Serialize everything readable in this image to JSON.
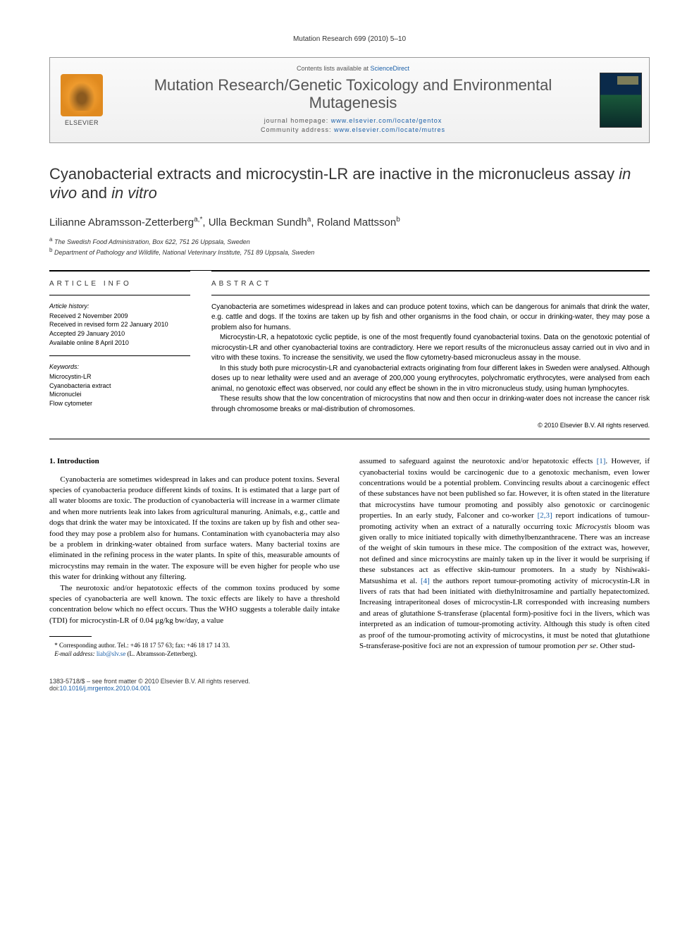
{
  "runningHeader": "Mutation Research 699 (2010) 5–10",
  "masthead": {
    "contents": "Contents lists available at ",
    "contentsLink": "ScienceDirect",
    "journalName": "Mutation Research/Genetic Toxicology and Environmental Mutagenesis",
    "homepageLabel": "journal homepage: ",
    "homepageUrl": "www.elsevier.com/locate/gentox",
    "communityLabel": "Community address: ",
    "communityUrl": "www.elsevier.com/locate/mutres",
    "publisher": "ELSEVIER"
  },
  "title": {
    "pre": "Cyanobacterial extracts and microcystin-LR are inactive in the micronucleus assay ",
    "ital1": "in vivo",
    "mid": " and ",
    "ital2": "in vitro"
  },
  "authors": "Lilianne Abramsson-Zetterberg",
  "authorsSup1": "a,",
  "authorsStar": "*",
  "authorsRest": ", Ulla Beckman Sundh",
  "authorsSup2": "a",
  "authorsRest2": ", Roland Mattsson",
  "authorsSup3": "b",
  "affiliations": {
    "a": "The Swedish Food Administration, Box 622, 751 26 Uppsala, Sweden",
    "b": "Department of Pathology and Wildlife, National Veterinary Institute, 751 89 Uppsala, Sweden"
  },
  "articleInfo": {
    "heading": "ARTICLE INFO",
    "historyHead": "Article history:",
    "received": "Received 2 November 2009",
    "revised": "Received in revised form 22 January 2010",
    "accepted": "Accepted 29 January 2010",
    "online": "Available online 8 April 2010",
    "keywordsHead": "Keywords:",
    "k1": "Microcystin-LR",
    "k2": "Cyanobacteria extract",
    "k3": "Micronuclei",
    "k4": "Flow cytometer"
  },
  "abstract": {
    "heading": "ABSTRACT",
    "p1": "Cyanobacteria are sometimes widespread in lakes and can produce potent toxins, which can be dangerous for animals that drink the water, e.g. cattle and dogs. If the toxins are taken up by fish and other organisms in the food chain, or occur in drinking-water, they may pose a problem also for humans.",
    "p2": "Microcystin-LR, a hepatotoxic cyclic peptide, is one of the most frequently found cyanobacterial toxins. Data on the genotoxic potential of microcystin-LR and other cyanobacterial toxins are contradictory. Here we report results of the micronucleus assay carried out in vivo and in vitro with these toxins. To increase the sensitivity, we used the flow cytometry-based micronucleus assay in the mouse.",
    "p3": "In this study both pure microcystin-LR and cyanobacterial extracts originating from four different lakes in Sweden were analysed. Although doses up to near lethality were used and an average of 200,000 young erythrocytes, polychromatic erythrocytes, were analysed from each animal, no genotoxic effect was observed, nor could any effect be shown in the in vitro micronucleus study, using human lymphocytes.",
    "p4": "These results show that the low concentration of microcystins that now and then occur in drinking-water does not increase the cancer risk through chromosome breaks or mal-distribution of chromosomes.",
    "copyright": "© 2010 Elsevier B.V. All rights reserved."
  },
  "section1": {
    "heading": "1. Introduction",
    "p1": "Cyanobacteria are sometimes widespread in lakes and can produce potent toxins. Several species of cyanobacteria produce different kinds of toxins. It is estimated that a large part of all water blooms are toxic. The production of cyanobacteria will increase in a warmer climate and when more nutrients leak into lakes from agricultural manuring. Animals, e.g., cattle and dogs that drink the water may be intoxicated. If the toxins are taken up by fish and other sea-food they may pose a problem also for humans. Contamination with cyanobacteria may also be a problem in drinking-water obtained from surface waters. Many bacterial toxins are eliminated in the refining process in the water plants. In spite of this, measurable amounts of microcystins may remain in the water. The exposure will be even higher for people who use this water for drinking without any filtering.",
    "p2a": "The neurotoxic and/or hepatotoxic effects of the common toxins produced by some species of cyanobacteria are well known. The toxic effects are likely to have a threshold concentration below which no effect occurs. Thus the WHO suggests a tolerable daily intake (TDI) for microcystin-LR of 0.04 μg/kg bw/day, a value ",
    "p2b": "assumed to safeguard against the neurotoxic and/or hepatotoxic effects ",
    "ref1": "[1]",
    "p2c": ". However, if cyanobacterial toxins would be carcinogenic due to a genotoxic mechanism, even lower concentrations would be a potential problem. Convincing results about a carcinogenic effect of these substances have not been published so far. However, it is often stated in the literature that microcystins have tumour promoting and possibly also genotoxic or carcinogenic properties. In an early study, Falconer and co-worker ",
    "ref23": "[2,3]",
    "p2d": " report indications of tumour-promoting activity when an extract of a naturally occurring toxic ",
    "microcystis": "Microcystis",
    "p2e": " bloom was given orally to mice initiated topically with dimethylbenzanthracene. There was an increase of the weight of skin tumours in these mice. The composition of the extract was, however, not defined and since microcystins are mainly taken up in the liver it would be surprising if these substances act as effective skin-tumour promoters. In a study by Nishiwaki-Matsushima et al. ",
    "ref4": "[4]",
    "p2f": " the authors report tumour-promoting activity of microcystin-LR in livers of rats that had been initiated with diethylnitrosamine and partially hepatectomized. Increasing intraperitoneal doses of microcystin-LR corresponded with increasing numbers and areas of glutathione S-transferase (placental form)-positive foci in the livers, which was interpreted as an indication of tumour-promoting activity. Although this study is often cited as proof of the tumour-promoting activity of microcystins, it must be noted that glutathione S-transferase-positive foci are not an expression of tumour promotion ",
    "perse": "per se",
    "p2g": ". Other stud-"
  },
  "footnotes": {
    "corrLabel": "* Corresponding author. Tel.: +46 18 17 57 63; fax: +46 18 17 14 33.",
    "emailLabel": "E-mail address:",
    "email": "liab@slv.se",
    "emailSuffix": "(L. Abramsson-Zetterberg)."
  },
  "footer": {
    "left1": "1383-5718/$ – see front matter © 2010 Elsevier B.V. All rights reserved.",
    "doiLabel": "doi:",
    "doi": "10.1016/j.mrgentox.2010.04.001"
  }
}
